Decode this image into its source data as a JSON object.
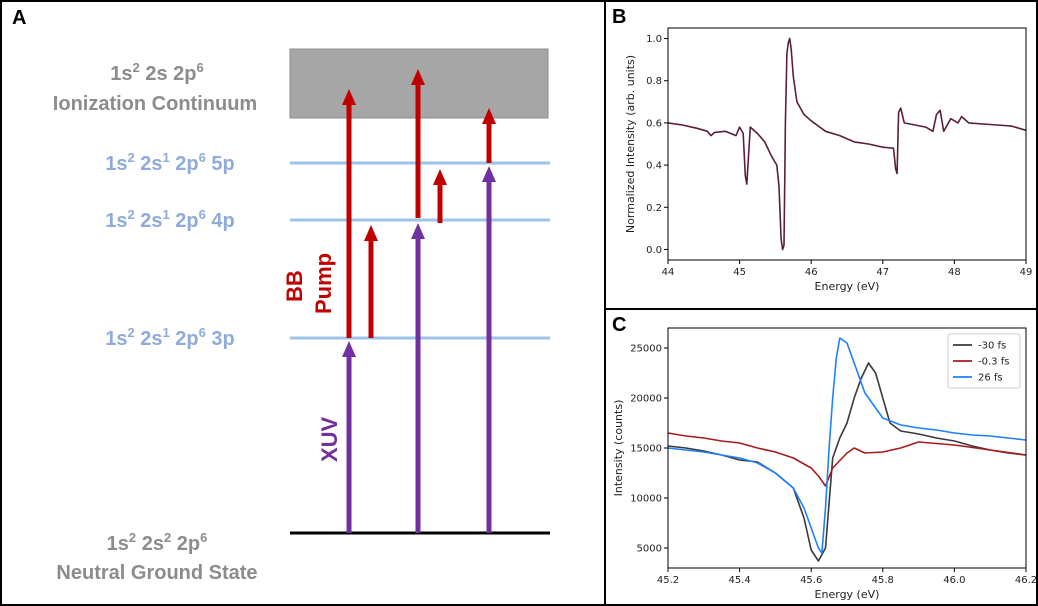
{
  "panel_a": {
    "label": "A",
    "continuum_config_main": "1s",
    "continuum_config_sup1": "2",
    "continuum_config_rest": " 2s 2p",
    "continuum_config_sup2": "6",
    "continuum_name": "Ionization Continuum",
    "level_5p": [
      "1s",
      "2",
      " 2s",
      "1",
      " 2p",
      "6",
      " 5p"
    ],
    "level_4p": [
      "1s",
      "2",
      " 2s",
      "1",
      " 2p",
      "6",
      " 4p"
    ],
    "level_3p": [
      "1s",
      "2",
      " 2s",
      "1",
      " 2p",
      "6",
      " 3p"
    ],
    "ground_config": [
      "1s",
      "2",
      " 2s",
      "2",
      " 2p",
      "6"
    ],
    "ground_name": "Neutral Ground State",
    "bb_label": "BB",
    "pump_label": "Pump",
    "xuv_label": "XUV",
    "colors": {
      "red": "#c00000",
      "purple": "#7030a0",
      "blue_level": "#9dc3e6",
      "blue_text": "#8faadc",
      "gray": "#a6a6a6",
      "gray_text": "#8c8c8c"
    }
  },
  "panel_b": {
    "label": "B"
  },
  "panel_c": {
    "label": "C"
  },
  "chart_data": [
    {
      "type": "line",
      "xlabel": "Energy (eV)",
      "ylabel": "Normalized Intensity (arb. units)",
      "xlim": [
        44,
        49
      ],
      "ylim": [
        -0.05,
        1.05
      ],
      "xticks": [
        44,
        45,
        46,
        47,
        48,
        49
      ],
      "yticks": [
        0.0,
        0.2,
        0.4,
        0.6,
        0.8,
        1.0
      ],
      "color": "#5a1f3f",
      "series": [
        {
          "x": [
            44.0,
            44.2,
            44.4,
            44.55,
            44.6,
            44.65,
            44.8,
            44.95,
            45.0,
            45.05,
            45.08,
            45.1,
            45.15,
            45.25,
            45.35,
            45.45,
            45.52,
            45.55,
            45.58,
            45.6,
            45.62,
            45.64,
            45.66,
            45.68,
            45.7,
            45.72,
            45.75,
            45.8,
            45.9,
            46.0,
            46.2,
            46.4,
            46.6,
            46.8,
            47.0,
            47.15,
            47.18,
            47.2,
            47.22,
            47.25,
            47.3,
            47.45,
            47.6,
            47.7,
            47.75,
            47.8,
            47.85,
            47.95,
            48.05,
            48.1,
            48.2,
            48.4,
            48.6,
            48.8,
            49.0
          ],
          "y": [
            0.6,
            0.59,
            0.575,
            0.56,
            0.54,
            0.555,
            0.56,
            0.54,
            0.58,
            0.55,
            0.35,
            0.31,
            0.58,
            0.55,
            0.51,
            0.44,
            0.4,
            0.3,
            0.05,
            0.0,
            0.02,
            0.6,
            0.93,
            0.98,
            1.0,
            0.95,
            0.82,
            0.7,
            0.64,
            0.61,
            0.56,
            0.54,
            0.51,
            0.5,
            0.485,
            0.48,
            0.38,
            0.36,
            0.65,
            0.67,
            0.6,
            0.59,
            0.58,
            0.56,
            0.64,
            0.66,
            0.56,
            0.62,
            0.6,
            0.63,
            0.6,
            0.595,
            0.59,
            0.585,
            0.565
          ]
        }
      ]
    },
    {
      "type": "line",
      "xlabel": "Energy (eV)",
      "ylabel": "Intensity (counts)",
      "xlim": [
        45.2,
        46.2
      ],
      "ylim": [
        3000,
        27000
      ],
      "xticks": [
        45.2,
        45.4,
        45.6,
        45.8,
        46.0,
        46.2
      ],
      "yticks": [
        5000,
        10000,
        15000,
        20000,
        25000
      ],
      "legend": "top-right",
      "series": [
        {
          "name": "-30 fs",
          "color": "#3a3a3a",
          "x": [
            45.2,
            45.25,
            45.3,
            45.35,
            45.4,
            45.45,
            45.5,
            45.55,
            45.58,
            45.6,
            45.62,
            45.64,
            45.66,
            45.68,
            45.7,
            45.72,
            45.74,
            45.76,
            45.78,
            45.8,
            45.82,
            45.85,
            45.9,
            45.95,
            46.0,
            46.05,
            46.1,
            46.15,
            46.2
          ],
          "y": [
            15200,
            15000,
            14700,
            14300,
            13800,
            13600,
            12500,
            11000,
            8000,
            4800,
            3700,
            5000,
            14000,
            16000,
            17500,
            20000,
            22000,
            23500,
            22500,
            20000,
            17500,
            16700,
            16400,
            16000,
            15700,
            15200,
            14800,
            14500,
            14300
          ]
        },
        {
          "name": "-0.3 fs",
          "color": "#a61c1c",
          "x": [
            45.2,
            45.25,
            45.3,
            45.35,
            45.4,
            45.45,
            45.5,
            45.55,
            45.6,
            45.62,
            45.64,
            45.66,
            45.7,
            45.72,
            45.75,
            45.8,
            45.85,
            45.9,
            46.0,
            46.1,
            46.2
          ],
          "y": [
            16500,
            16200,
            16000,
            15700,
            15500,
            15000,
            14600,
            14000,
            13000,
            12200,
            11200,
            13000,
            14500,
            15000,
            14500,
            14600,
            15000,
            15600,
            15300,
            14800,
            14300
          ]
        },
        {
          "name": "26 fs",
          "color": "#1f80ff",
          "x": [
            45.2,
            45.25,
            45.3,
            45.35,
            45.4,
            45.45,
            45.5,
            45.55,
            45.58,
            45.6,
            45.62,
            45.63,
            45.64,
            45.65,
            45.66,
            45.67,
            45.68,
            45.7,
            45.72,
            45.75,
            45.8,
            45.85,
            45.9,
            45.95,
            46.0,
            46.05,
            46.1,
            46.15,
            46.2
          ],
          "y": [
            15000,
            14800,
            14600,
            14300,
            14000,
            13500,
            12500,
            11000,
            9000,
            7000,
            5000,
            4500,
            9000,
            15000,
            20000,
            24000,
            26000,
            25500,
            23500,
            20500,
            18000,
            17300,
            17000,
            16800,
            16500,
            16300,
            16200,
            16000,
            15800
          ]
        }
      ]
    }
  ]
}
